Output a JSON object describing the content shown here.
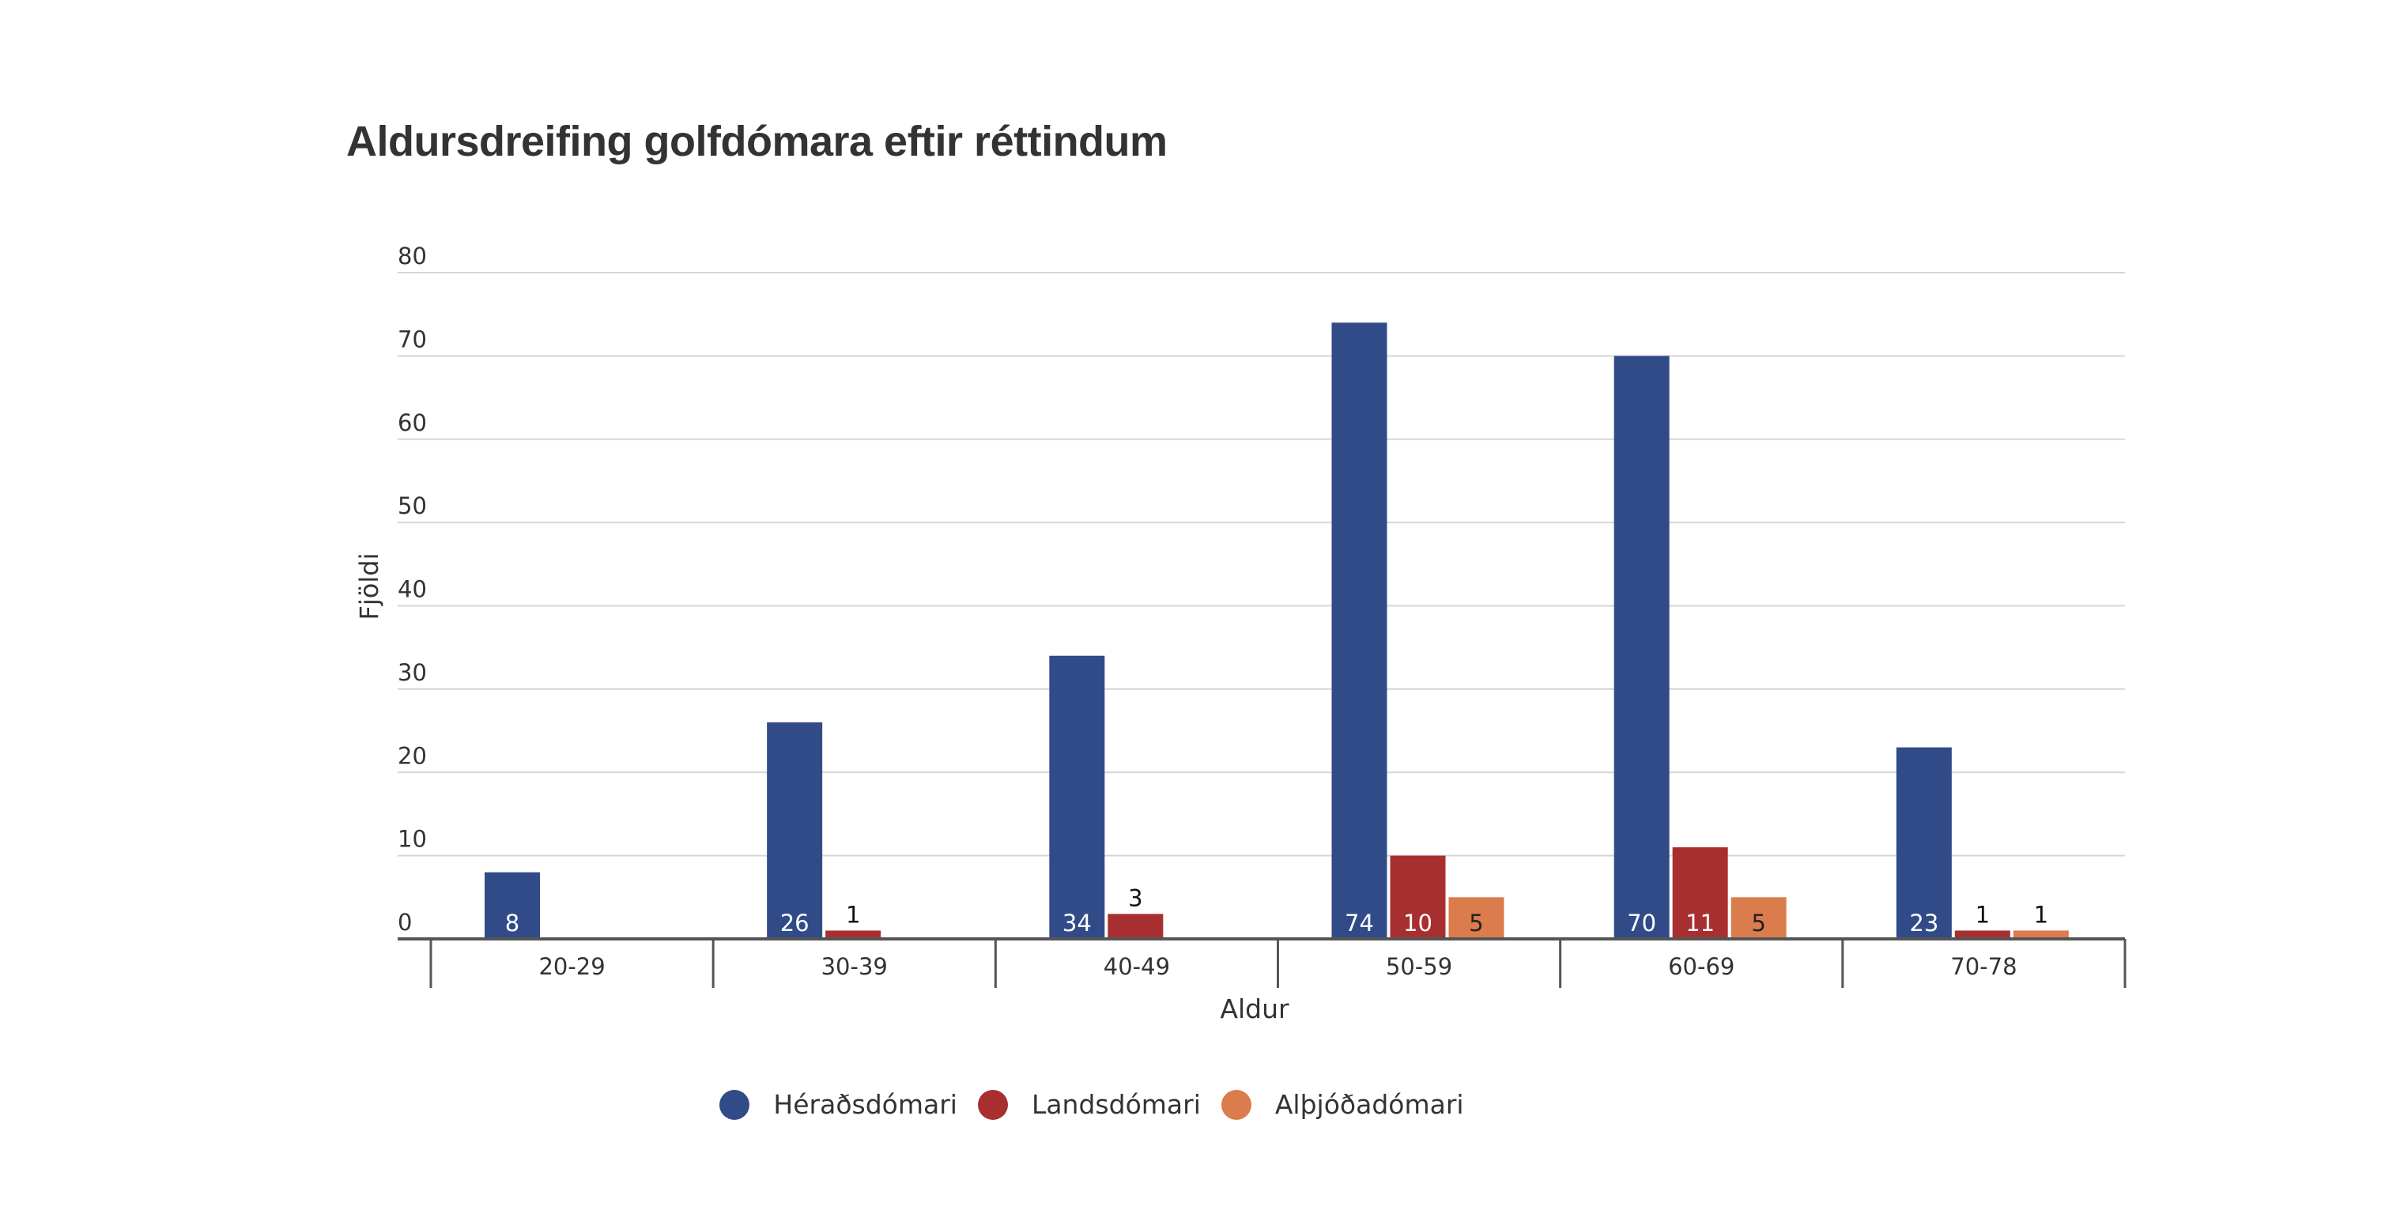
{
  "chart_data": {
    "type": "bar",
    "title": "Aldursdreifing golfdómara eftir réttindum",
    "xlabel": "Aldur",
    "ylabel": "Fjöldi",
    "ylim": [
      0,
      80
    ],
    "yticks": [
      "0",
      "10",
      "20",
      "30",
      "40",
      "50",
      "60",
      "70",
      "80"
    ],
    "grid": true,
    "legend_position": "bottom",
    "categories": [
      "20-29",
      "30-39",
      "40-49",
      "50-59",
      "60-69",
      "70-78"
    ],
    "series": [
      {
        "name": "Héraðsdómari",
        "color": "#314b89",
        "values": [
          8,
          26,
          34,
          74,
          70,
          23
        ]
      },
      {
        "name": "Landsdómari",
        "color": "#a82f2f",
        "values": [
          null,
          1,
          3,
          10,
          11,
          1
        ]
      },
      {
        "name": "Alþjóðadómari",
        "color": "#db7c4c",
        "values": [
          null,
          null,
          null,
          5,
          5,
          1
        ]
      }
    ]
  }
}
